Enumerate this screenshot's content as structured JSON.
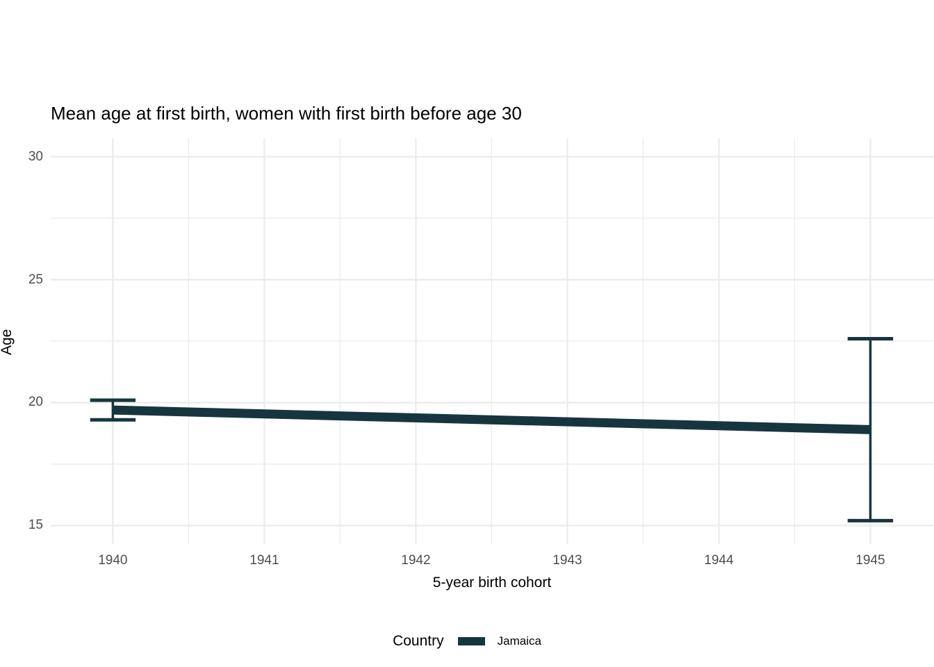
{
  "title": "Mean age at first birth, women with first birth before age 30",
  "chart_data": {
    "type": "line",
    "title": "Mean age at first birth, women with first birth before age 30",
    "xlabel": "5-year birth cohort",
    "ylabel": "Age",
    "x_ticks": [
      1940,
      1941,
      1942,
      1943,
      1944,
      1945
    ],
    "y_ticks": [
      15,
      20,
      25,
      30
    ],
    "x_minor_ticks": [
      1940.5,
      1941.5,
      1942.5,
      1943.5,
      1944.5
    ],
    "y_minor_ticks": [
      17.5,
      22.5,
      27.5
    ],
    "xlim": [
      1939.59,
      1945.42
    ],
    "ylim": [
      14.25,
      30.75
    ],
    "grid": "major-and-minor",
    "series": [
      {
        "name": "Jamaica",
        "color": "#16353f",
        "points": [
          {
            "x": 1940,
            "y": 19.7,
            "ci_low": 19.3,
            "ci_high": 20.1
          },
          {
            "x": 1945,
            "y": 18.9,
            "ci_low": 15.2,
            "ci_high": 22.6
          }
        ]
      }
    ],
    "legend": {
      "position": "bottom",
      "title": "Country",
      "entries": [
        {
          "label": "Jamaica",
          "color": "#16353f"
        }
      ]
    }
  },
  "colors": {
    "background": "#ffffff",
    "grid": "#ebebeb",
    "axis_text": "#4d4d4d",
    "text": "#000000",
    "series": "#16353f"
  }
}
